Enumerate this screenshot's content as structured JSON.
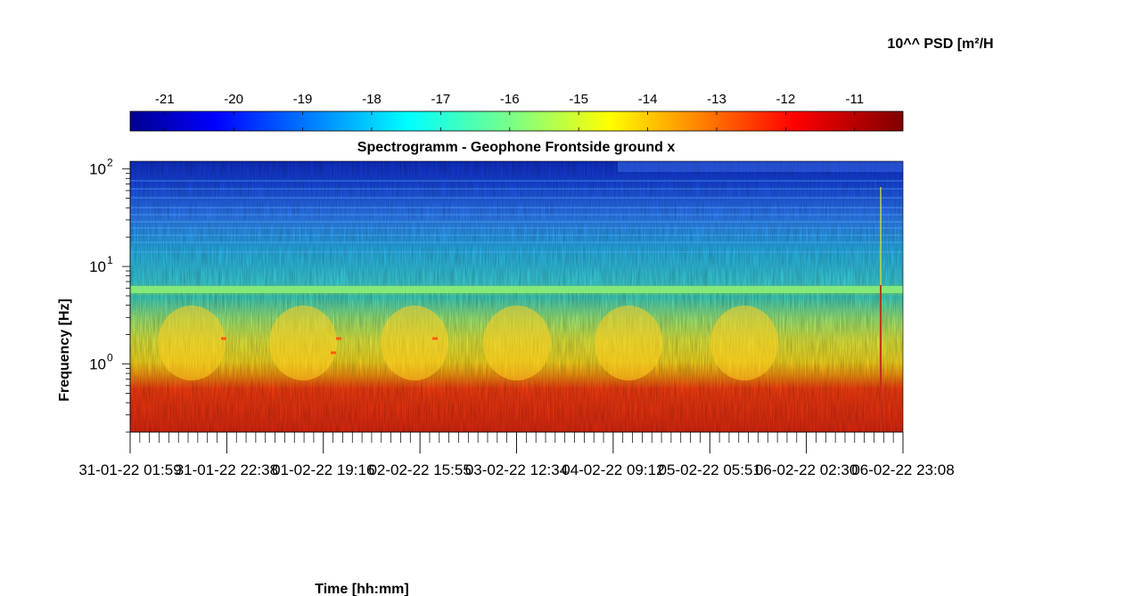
{
  "chart_data": {
    "type": "heatmap",
    "title": "Spectrogramm - Geophone Frontside ground x",
    "xlabel": "Time [hh:mm]",
    "ylabel": "Frequency [Hz]",
    "x_tick_labels": [
      "31-01-22 01:59",
      "31-01-22 22:38",
      "01-02-22 19:16",
      "02-02-22 15:55",
      "03-02-22 12:34",
      "04-02-22 09:12",
      "05-02-22 05:51",
      "06-02-22 02:30",
      "06-02-22 23:08"
    ],
    "y_scale": "log",
    "y_tick_labels": [
      {
        "base": "10",
        "exp": "0"
      },
      {
        "base": "10",
        "exp": "1"
      },
      {
        "base": "10",
        "exp": "2"
      }
    ],
    "ylim": [
      0.2,
      120
    ],
    "colorbar": {
      "label": "10^^ PSD [m²/H",
      "tick_labels": [
        "-21",
        "-20",
        "-19",
        "-18",
        "-17",
        "-16",
        "-15",
        "-14",
        "-13",
        "-12",
        "-11"
      ],
      "range": [
        -21.5,
        -10.3
      ],
      "colormap": "jet",
      "orientation": "horizontal",
      "placement": "top"
    },
    "grid": false,
    "legend": "none"
  }
}
